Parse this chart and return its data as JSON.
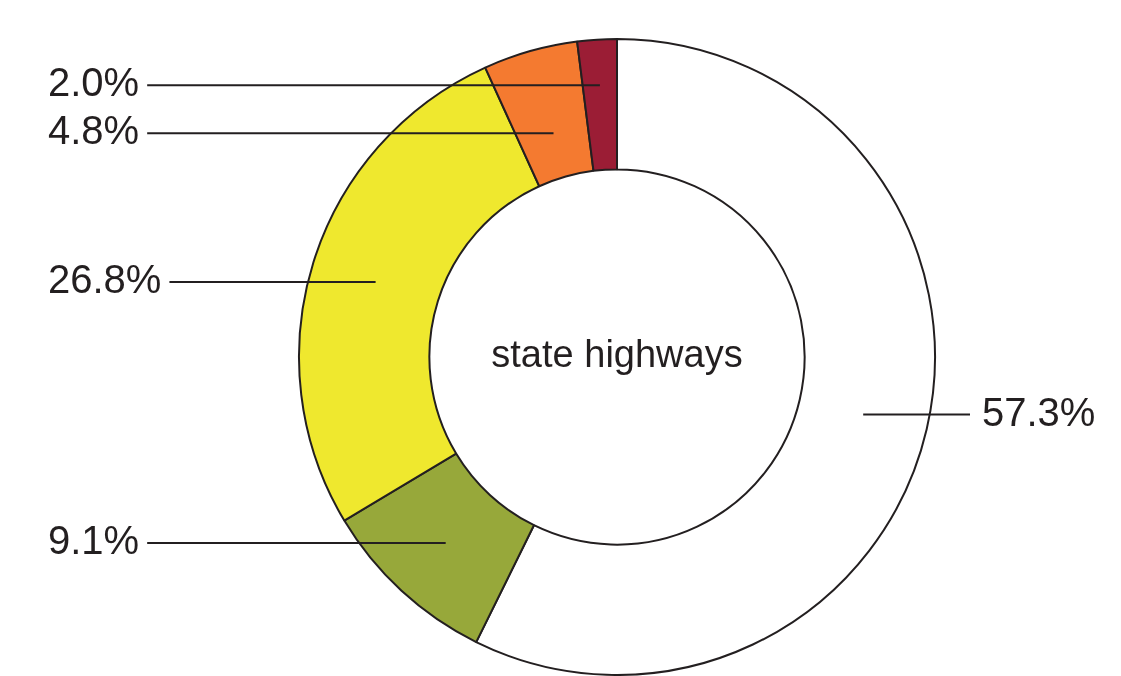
{
  "chart_data": {
    "type": "donut",
    "title": "state highways",
    "categories": [
      null,
      null,
      null,
      null,
      null
    ],
    "values": [
      57.3,
      9.1,
      26.8,
      4.8,
      2.0
    ],
    "colors": [
      "#ffffff",
      "#97a83a",
      "#efe82e",
      "#f47a30",
      "#9b1d35"
    ],
    "value_labels": [
      "57.3%",
      "9.1%",
      "26.8%",
      "4.8%",
      "2.0%"
    ],
    "legend": false
  }
}
